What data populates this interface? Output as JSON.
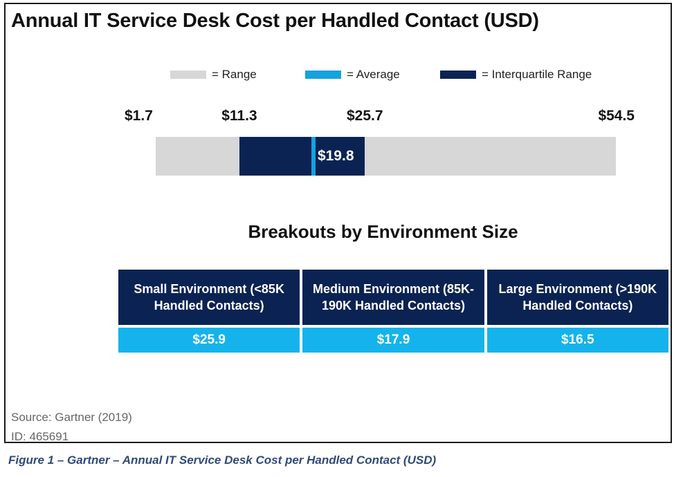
{
  "title": "Annual IT Service Desk Cost per Handled Contact (USD)",
  "legend": [
    {
      "label": "= Range",
      "color": "#d7d7d7"
    },
    {
      "label": "= Average",
      "color": "#15a2dd"
    },
    {
      "label": "= Interquartile Range",
      "color": "#0b2352"
    }
  ],
  "chart_data": {
    "type": "bar",
    "orientation": "horizontal",
    "range": {
      "min": 1.7,
      "max": 54.5
    },
    "interquartile_range": {
      "low": 11.3,
      "high": 25.7
    },
    "average": 19.8,
    "tick_labels": [
      "$1.7",
      "$11.3",
      "$25.7",
      "$54.5"
    ],
    "average_label": "$19.8",
    "legend_placement": "top"
  },
  "breakouts": {
    "title": "Breakouts by Environment Size",
    "columns": [
      {
        "header": "Small Environment (<85K Handled Contacts)",
        "value": "$25.9"
      },
      {
        "header": "Medium Environment (85K-190K Handled Contacts)",
        "value": "$17.9"
      },
      {
        "header": "Large Environment (>190K Handled Contacts)",
        "value": "$16.5"
      }
    ]
  },
  "source": "Source: Gartner (2019)",
  "id_line": "ID: 465691",
  "caption": "Figure 1 – Gartner – Annual IT Service Desk Cost per Handled Contact (USD)"
}
